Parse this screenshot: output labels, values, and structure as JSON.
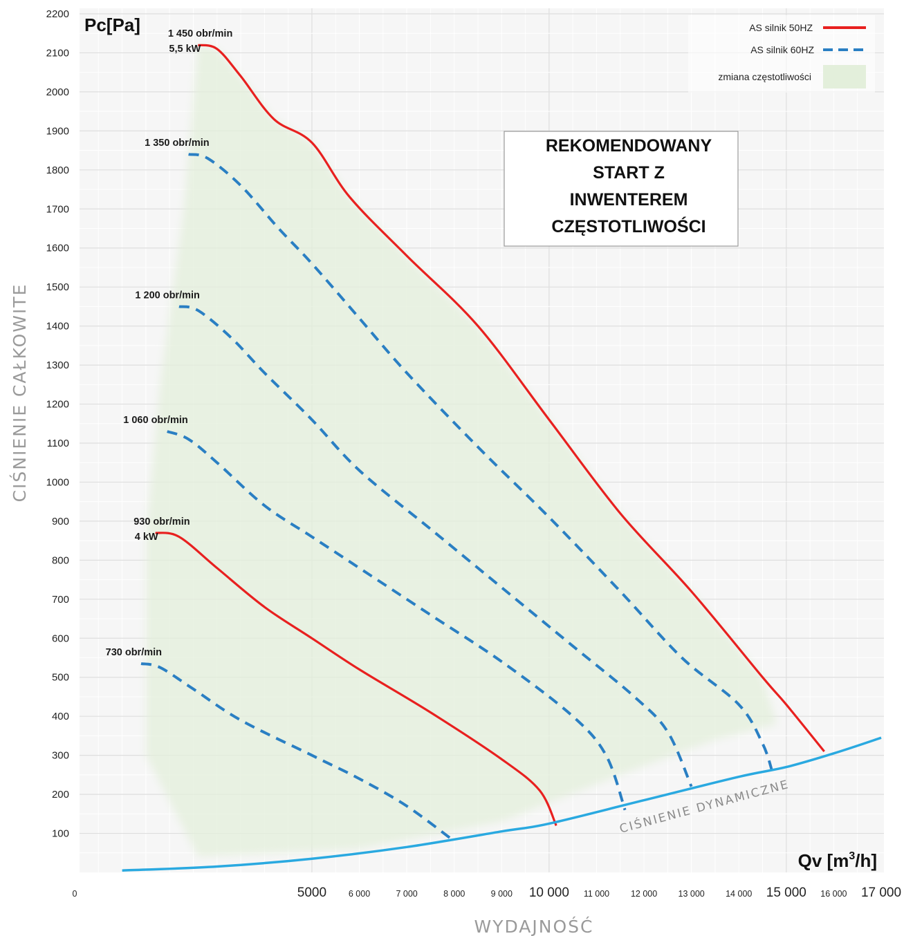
{
  "chart_data": {
    "type": "line",
    "ylabel": "CIŚNIENIE CAŁKOWITE",
    "xlabel": "WYDAJNOŚĆ",
    "y_unit": "Pc[Pa]",
    "x_unit": "Qv [m",
    "x_unit_sup": "3",
    "x_unit_end": "/h]",
    "ylim": [
      0,
      2200
    ],
    "xlim": [
      0,
      17000
    ],
    "yticks": [
      {
        "v": 100,
        "label": "100"
      },
      {
        "v": 200,
        "label": "200"
      },
      {
        "v": 300,
        "label": "300"
      },
      {
        "v": 400,
        "label": "400"
      },
      {
        "v": 500,
        "label": "500"
      },
      {
        "v": 600,
        "label": "600"
      },
      {
        "v": 700,
        "label": "700"
      },
      {
        "v": 800,
        "label": "800"
      },
      {
        "v": 900,
        "label": "900"
      },
      {
        "v": 1000,
        "label": "1000"
      },
      {
        "v": 1100,
        "label": "1100"
      },
      {
        "v": 1200,
        "label": "1200"
      },
      {
        "v": 1300,
        "label": "1300"
      },
      {
        "v": 1400,
        "label": "1400"
      },
      {
        "v": 1500,
        "label": "1500"
      },
      {
        "v": 1600,
        "label": "1600"
      },
      {
        "v": 1700,
        "label": "1700"
      },
      {
        "v": 1800,
        "label": "1800"
      },
      {
        "v": 1900,
        "label": "1900"
      },
      {
        "v": 2000,
        "label": "2000"
      },
      {
        "v": 2100,
        "label": "2100"
      },
      {
        "v": 2200,
        "label": "2200"
      }
    ],
    "xticks": [
      {
        "v": 0,
        "label": "0",
        "major": false
      },
      {
        "v": 5000,
        "label": "5000",
        "major": true
      },
      {
        "v": 6000,
        "label": "6 000",
        "major": false
      },
      {
        "v": 7000,
        "label": "7 000",
        "major": false
      },
      {
        "v": 8000,
        "label": "8 000",
        "major": false
      },
      {
        "v": 9000,
        "label": "9 000",
        "major": false
      },
      {
        "v": 10000,
        "label": "10 000",
        "major": true
      },
      {
        "v": 11000,
        "label": "11 000",
        "major": false
      },
      {
        "v": 12000,
        "label": "12 000",
        "major": false
      },
      {
        "v": 13000,
        "label": "13 000",
        "major": false
      },
      {
        "v": 14000,
        "label": "14 000",
        "major": false
      },
      {
        "v": 15000,
        "label": "15 000",
        "major": true
      },
      {
        "v": 16000,
        "label": "16 000",
        "major": false
      },
      {
        "v": 17000,
        "label": "17 000",
        "major": true
      }
    ],
    "grid": true,
    "legend_position": "top-right",
    "legend": [
      {
        "label": "AS silnik 50HZ",
        "style": "solid",
        "color": "#e8201f"
      },
      {
        "label": "AS silnik 60HZ",
        "style": "dashed",
        "color": "#2a7fc3"
      },
      {
        "label": "zmiana częstotliwości",
        "style": "area",
        "color": "#e3efdb"
      }
    ],
    "series": [
      {
        "label_lines": [
          "1 450 obr/min",
          "5,5 kW"
        ],
        "style": "solid",
        "color": "#e8201f",
        "points": [
          [
            2600,
            2120
          ],
          [
            3000,
            2110
          ],
          [
            3500,
            2040
          ],
          [
            4200,
            1930
          ],
          [
            5000,
            1870
          ],
          [
            5800,
            1730
          ],
          [
            7000,
            1580
          ],
          [
            8500,
            1400
          ],
          [
            10000,
            1160
          ],
          [
            11500,
            920
          ],
          [
            13000,
            720
          ],
          [
            14500,
            500
          ],
          [
            15000,
            430
          ],
          [
            15800,
            310
          ]
        ]
      },
      {
        "label_lines": [
          "1 350 obr/min"
        ],
        "style": "dashed",
        "color": "#2a7fc3",
        "points": [
          [
            2400,
            1840
          ],
          [
            2800,
            1830
          ],
          [
            3500,
            1760
          ],
          [
            4300,
            1650
          ],
          [
            5000,
            1560
          ],
          [
            6000,
            1420
          ],
          [
            7000,
            1280
          ],
          [
            8500,
            1090
          ],
          [
            10000,
            910
          ],
          [
            11500,
            720
          ],
          [
            12800,
            550
          ],
          [
            14000,
            430
          ],
          [
            14500,
            330
          ],
          [
            14700,
            260
          ]
        ]
      },
      {
        "label_lines": [
          "1 200 obr/min"
        ],
        "style": "dashed",
        "color": "#2a7fc3",
        "points": [
          [
            2200,
            1450
          ],
          [
            2600,
            1440
          ],
          [
            3300,
            1370
          ],
          [
            4000,
            1280
          ],
          [
            5000,
            1160
          ],
          [
            6000,
            1030
          ],
          [
            7500,
            880
          ],
          [
            9000,
            730
          ],
          [
            10500,
            580
          ],
          [
            11800,
            450
          ],
          [
            12500,
            360
          ],
          [
            13000,
            220
          ]
        ]
      },
      {
        "label_lines": [
          "1 060 obr/min"
        ],
        "style": "dashed",
        "color": "#2a7fc3",
        "points": [
          [
            1950,
            1130
          ],
          [
            2400,
            1110
          ],
          [
            3000,
            1050
          ],
          [
            4000,
            940
          ],
          [
            5000,
            860
          ],
          [
            6000,
            780
          ],
          [
            7500,
            660
          ],
          [
            9000,
            540
          ],
          [
            10500,
            400
          ],
          [
            11200,
            300
          ],
          [
            11600,
            160
          ]
        ]
      },
      {
        "label_lines": [
          "930 obr/min",
          "4 kW"
        ],
        "style": "solid",
        "color": "#e8201f",
        "points": [
          [
            1700,
            870
          ],
          [
            2200,
            860
          ],
          [
            3000,
            780
          ],
          [
            4000,
            680
          ],
          [
            5000,
            600
          ],
          [
            6000,
            520
          ],
          [
            7500,
            410
          ],
          [
            9000,
            290
          ],
          [
            9800,
            210
          ],
          [
            10150,
            120
          ]
        ]
      },
      {
        "label_lines": [
          "730 obr/min"
        ],
        "style": "dashed",
        "color": "#2a7fc3",
        "points": [
          [
            1400,
            535
          ],
          [
            1800,
            525
          ],
          [
            2500,
            470
          ],
          [
            3500,
            390
          ],
          [
            5000,
            300
          ],
          [
            6000,
            240
          ],
          [
            7000,
            170
          ],
          [
            8000,
            80
          ]
        ]
      }
    ],
    "dynamic_pressure": {
      "label": "CIŚNIENIE DYNAMICZNE",
      "color": "#2aa9e0",
      "points": [
        [
          1000,
          5
        ],
        [
          3000,
          15
        ],
        [
          5000,
          35
        ],
        [
          7000,
          65
        ],
        [
          9000,
          105
        ],
        [
          10000,
          125
        ],
        [
          12000,
          185
        ],
        [
          14000,
          245
        ],
        [
          15000,
          270
        ],
        [
          16000,
          305
        ],
        [
          17000,
          345
        ]
      ]
    },
    "shaded_region": {
      "label": "zmiana częstotliwości",
      "color": "#e3efdb",
      "points": [
        [
          2600,
          2120
        ],
        [
          3000,
          2110
        ],
        [
          3500,
          2040
        ],
        [
          4200,
          1930
        ],
        [
          5000,
          1870
        ],
        [
          5800,
          1730
        ],
        [
          7000,
          1580
        ],
        [
          8500,
          1400
        ],
        [
          10000,
          1160
        ],
        [
          11500,
          920
        ],
        [
          13000,
          720
        ],
        [
          14500,
          500
        ],
        [
          14800,
          380
        ],
        [
          13500,
          340
        ],
        [
          11500,
          250
        ],
        [
          9000,
          130
        ],
        [
          6000,
          60
        ],
        [
          2600,
          40
        ],
        [
          1500,
          300
        ],
        [
          1500,
          860
        ],
        [
          1800,
          1250
        ],
        [
          2300,
          1700
        ]
      ]
    },
    "annotation": {
      "lines": [
        "REKOMENDOWANY",
        "START Z",
        "INWENTEREM",
        "CZĘSTOTLIWOŚCI"
      ]
    }
  }
}
